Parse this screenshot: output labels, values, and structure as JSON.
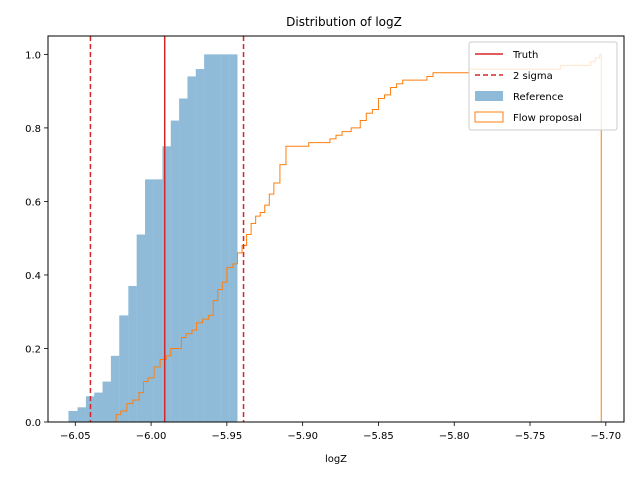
{
  "chart_data": {
    "type": "histogram",
    "title": "Distribution of logZ",
    "xlabel": "logZ",
    "ylabel": "",
    "xlim": [
      -6.068,
      -5.688
    ],
    "ylim": [
      0,
      1.05
    ],
    "xticks": [
      -6.05,
      -6.0,
      -5.95,
      -5.9,
      -5.85,
      -5.8,
      -5.75,
      -5.7
    ],
    "xtick_labels": [
      "−6.05",
      "−6.00",
      "−5.95",
      "−5.90",
      "−5.85",
      "−5.80",
      "−5.75",
      "−5.70"
    ],
    "yticks": [
      0.0,
      0.2,
      0.4,
      0.6,
      0.8,
      1.0
    ],
    "ytick_labels": [
      "0.0",
      "0.2",
      "0.4",
      "0.6",
      "0.8",
      "1.0"
    ],
    "grid": false,
    "legend_position": "top-right",
    "legend": [
      {
        "label": "Truth",
        "kind": "line",
        "color": "#d62728",
        "dash": false
      },
      {
        "label": "2 sigma",
        "kind": "line",
        "color": "#d62728",
        "dash": true
      },
      {
        "label": "Reference",
        "kind": "patch",
        "color": "#1f77b4",
        "alpha": 0.5
      },
      {
        "label": "Flow proposal",
        "kind": "step",
        "color": "#ff7f0e"
      }
    ],
    "vlines": [
      {
        "name": "Truth",
        "x": -5.991,
        "style": "solid",
        "color": "#d62728"
      },
      {
        "name": "2 sigma lower",
        "x": -6.04,
        "style": "dashed",
        "color": "#d62728"
      },
      {
        "name": "2 sigma upper",
        "x": -5.939,
        "style": "dashed",
        "color": "#d62728"
      }
    ],
    "series": [
      {
        "name": "Reference",
        "kind": "cumulative_bars",
        "color": "#1f77b4",
        "alpha": 0.5,
        "bin_edges": [
          -6.0545,
          -6.0485,
          -6.043,
          -6.0375,
          -6.032,
          -6.0265,
          -6.021,
          -6.015,
          -6.0095,
          -6.004,
          -5.9985,
          -5.9925,
          -5.987,
          -5.9815,
          -5.976,
          -5.9705,
          -5.965,
          -5.9595,
          -5.954,
          -5.9485,
          -5.943
        ],
        "values": [
          0.03,
          0.04,
          0.07,
          0.08,
          0.11,
          0.18,
          0.29,
          0.37,
          0.51,
          0.66,
          0.66,
          0.75,
          0.82,
          0.88,
          0.94,
          0.96,
          1.0,
          1.0,
          1.0,
          1.0
        ]
      },
      {
        "name": "Flow proposal",
        "kind": "cumulative_step",
        "color": "#ff7f0e",
        "steps": [
          [
            -6.023,
            0.0
          ],
          [
            -6.023,
            0.02
          ],
          [
            -6.02,
            0.03
          ],
          [
            -6.016,
            0.05
          ],
          [
            -6.012,
            0.06
          ],
          [
            -6.008,
            0.08
          ],
          [
            -6.005,
            0.11
          ],
          [
            -6.002,
            0.12
          ],
          [
            -5.998,
            0.15
          ],
          [
            -5.994,
            0.17
          ],
          [
            -5.99,
            0.18
          ],
          [
            -5.987,
            0.2
          ],
          [
            -5.983,
            0.2
          ],
          [
            -5.98,
            0.23
          ],
          [
            -5.977,
            0.24
          ],
          [
            -5.973,
            0.25
          ],
          [
            -5.97,
            0.27
          ],
          [
            -5.966,
            0.28
          ],
          [
            -5.962,
            0.29
          ],
          [
            -5.959,
            0.33
          ],
          [
            -5.956,
            0.36
          ],
          [
            -5.953,
            0.38
          ],
          [
            -5.95,
            0.42
          ],
          [
            -5.946,
            0.43
          ],
          [
            -5.943,
            0.46
          ],
          [
            -5.94,
            0.48
          ],
          [
            -5.937,
            0.51
          ],
          [
            -5.934,
            0.54
          ],
          [
            -5.931,
            0.56
          ],
          [
            -5.928,
            0.57
          ],
          [
            -5.925,
            0.59
          ],
          [
            -5.922,
            0.62
          ],
          [
            -5.919,
            0.65
          ],
          [
            -5.915,
            0.7
          ],
          [
            -5.911,
            0.75
          ],
          [
            -5.904,
            0.75
          ],
          [
            -5.896,
            0.76
          ],
          [
            -5.888,
            0.76
          ],
          [
            -5.882,
            0.77
          ],
          [
            -5.878,
            0.78
          ],
          [
            -5.874,
            0.79
          ],
          [
            -5.868,
            0.8
          ],
          [
            -5.862,
            0.82
          ],
          [
            -5.858,
            0.84
          ],
          [
            -5.854,
            0.85
          ],
          [
            -5.85,
            0.88
          ],
          [
            -5.846,
            0.89
          ],
          [
            -5.842,
            0.91
          ],
          [
            -5.838,
            0.92
          ],
          [
            -5.834,
            0.93
          ],
          [
            -5.827,
            0.93
          ],
          [
            -5.818,
            0.94
          ],
          [
            -5.814,
            0.95
          ],
          [
            -5.79,
            0.96
          ],
          [
            -5.76,
            0.96
          ],
          [
            -5.73,
            0.97
          ],
          [
            -5.71,
            0.98
          ],
          [
            -5.707,
            0.99
          ],
          [
            -5.704,
            1.0
          ],
          [
            -5.703,
            0.0
          ]
        ]
      }
    ]
  }
}
